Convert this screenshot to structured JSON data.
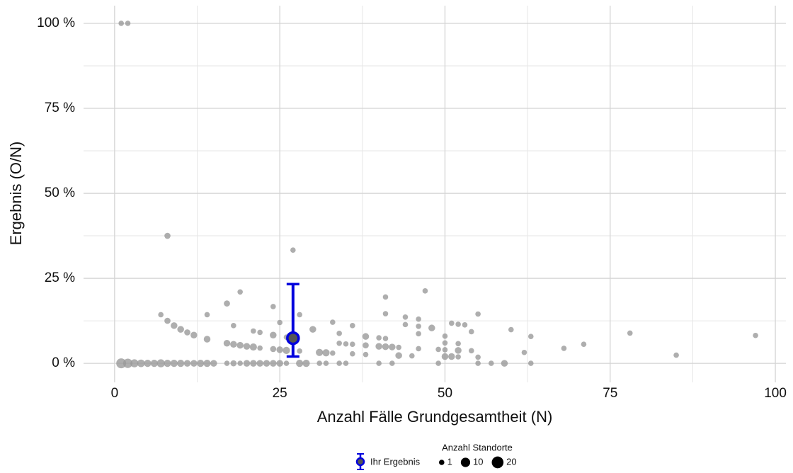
{
  "chart_data": {
    "type": "scatter",
    "xlabel": "Anzahl Fälle Grundgesamtheit (N)",
    "ylabel": "Ergebnis (O/N)",
    "xlim": [
      -4.7,
      101.6
    ],
    "ylim": [
      -5.6,
      105.2
    ],
    "xticks": [
      0,
      25,
      50,
      75,
      100
    ],
    "yticks": [
      {
        "value": 0,
        "label": "0 %"
      },
      {
        "value": 25,
        "label": "25 %"
      },
      {
        "value": 50,
        "label": "50 %"
      },
      {
        "value": 75,
        "label": "75 %"
      },
      {
        "value": 100,
        "label": "100 %"
      }
    ],
    "xminor": [
      12.5,
      37.5,
      62.5,
      87.5
    ],
    "yminor": [
      12.5,
      37.5,
      62.5,
      87.5
    ],
    "grid": true,
    "color": "#9a9a9a",
    "x": [
      1,
      2,
      8,
      27,
      19,
      47,
      41,
      17,
      24,
      7,
      14,
      28,
      41,
      55,
      44,
      46,
      8,
      9,
      10,
      11,
      12,
      14,
      18,
      21,
      22,
      25,
      33,
      36,
      44,
      46,
      51,
      52,
      53,
      48,
      30,
      34,
      38,
      40,
      41,
      46,
      54,
      60,
      63,
      78,
      97,
      24,
      26,
      27,
      17,
      18,
      19,
      20,
      21,
      22,
      24,
      25,
      26,
      28,
      31,
      32,
      33,
      34,
      35,
      36,
      36,
      38,
      38,
      40,
      41,
      42,
      43,
      43,
      45,
      46,
      49,
      50,
      50,
      50,
      51,
      50,
      52,
      52,
      52,
      54,
      55,
      62,
      68,
      71,
      85,
      1,
      2,
      3,
      4,
      5,
      6,
      7,
      8,
      9,
      10,
      11,
      12,
      13,
      14,
      15,
      17,
      18,
      19,
      20,
      21,
      22,
      23,
      24,
      25,
      26,
      28,
      29,
      31,
      32,
      34,
      35,
      40,
      42,
      49,
      55,
      57,
      59,
      63
    ],
    "values": [
      100,
      100,
      37.5,
      33.3,
      21,
      21.3,
      19.5,
      17.6,
      16.7,
      14.3,
      14.3,
      14.3,
      14.6,
      14.5,
      13.6,
      13,
      12.5,
      11.1,
      10,
      9.1,
      8.3,
      7.1,
      11.1,
      9.5,
      9.1,
      12,
      12.1,
      11.1,
      11.4,
      10.9,
      11.8,
      11.5,
      11.3,
      10.4,
      10,
      8.8,
      7.9,
      7.5,
      7.3,
      8.7,
      9.3,
      9.9,
      7.9,
      8.9,
      8.2,
      8.3,
      7.7,
      7.4,
      5.9,
      5.6,
      5.3,
      5,
      4.8,
      4.5,
      4.2,
      4,
      3.8,
      3.6,
      3.2,
      3.1,
      3,
      5.9,
      5.7,
      5.6,
      2.8,
      5.3,
      2.6,
      5,
      4.9,
      4.8,
      4.7,
      2.3,
      2.2,
      4.3,
      4.1,
      4,
      6,
      8,
      2,
      2,
      3.8,
      5.8,
      1.9,
      3.7,
      1.8,
      3.2,
      4.4,
      5.6,
      2.4,
      0,
      0,
      0,
      0,
      0,
      0,
      0,
      0,
      0,
      0,
      0,
      0,
      0,
      0,
      0,
      0,
      0,
      0,
      0,
      0,
      0,
      0,
      0,
      0,
      0,
      0,
      0,
      0,
      0,
      0,
      0,
      0,
      0,
      0,
      0,
      0,
      0,
      0
    ],
    "sizes": [
      1,
      1,
      2,
      1,
      1,
      1,
      1,
      2,
      1,
      1,
      1,
      1,
      1,
      1,
      1,
      1,
      2,
      3,
      3,
      2,
      3,
      3,
      1,
      1,
      1,
      1,
      1,
      1,
      1,
      1,
      1,
      1,
      1,
      3,
      3,
      1,
      3,
      1,
      1,
      1,
      1,
      1,
      1,
      1,
      1,
      3,
      1,
      1,
      3,
      3,
      3,
      3,
      4,
      1,
      2,
      3,
      4,
      1,
      4,
      4,
      1,
      1,
      1,
      1,
      1,
      2,
      1,
      3,
      3,
      3,
      1,
      3,
      1,
      1,
      1,
      1,
      1,
      1,
      3,
      3,
      3,
      1,
      1,
      1,
      1,
      1,
      1,
      1,
      1,
      12,
      10,
      6,
      5,
      4,
      4,
      6,
      4,
      4,
      4,
      3,
      3,
      4,
      4,
      3,
      1,
      2,
      1,
      3,
      3,
      3,
      3,
      3,
      3,
      1,
      4,
      4,
      1,
      1,
      1,
      1,
      1,
      1,
      1,
      1,
      1,
      3,
      1
    ],
    "highlight": {
      "name": "Ihr Ergebnis",
      "color": "#0000dd",
      "x": 27,
      "value": 7.4,
      "lower": 2,
      "upper": 23.3
    },
    "size_legend": {
      "title": "Anzahl Standorte",
      "values": [
        1,
        10,
        20
      ]
    }
  }
}
